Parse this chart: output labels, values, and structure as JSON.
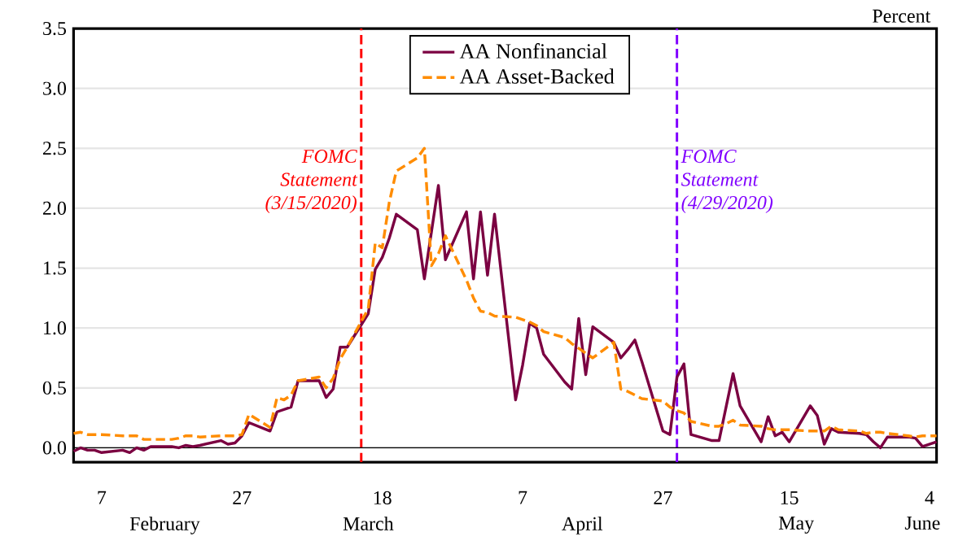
{
  "chart_data": {
    "type": "line",
    "ylabel": "Percent",
    "x": [
      "2020-02-03",
      "2020-02-04",
      "2020-02-05",
      "2020-02-06",
      "2020-02-07",
      "2020-02-10",
      "2020-02-11",
      "2020-02-12",
      "2020-02-13",
      "2020-02-14",
      "2020-02-17",
      "2020-02-18",
      "2020-02-19",
      "2020-02-20",
      "2020-02-21",
      "2020-02-24",
      "2020-02-25",
      "2020-02-26",
      "2020-02-27",
      "2020-02-28",
      "2020-03-02",
      "2020-03-03",
      "2020-03-04",
      "2020-03-05",
      "2020-03-06",
      "2020-03-09",
      "2020-03-10",
      "2020-03-11",
      "2020-03-12",
      "2020-03-13",
      "2020-03-16",
      "2020-03-17",
      "2020-03-18",
      "2020-03-19",
      "2020-03-20",
      "2020-03-23",
      "2020-03-24",
      "2020-03-25",
      "2020-03-26",
      "2020-03-27",
      "2020-03-30",
      "2020-03-31",
      "2020-04-01",
      "2020-04-02",
      "2020-04-03",
      "2020-04-06",
      "2020-04-07",
      "2020-04-08",
      "2020-04-09",
      "2020-04-10",
      "2020-04-13",
      "2020-04-14",
      "2020-04-15",
      "2020-04-16",
      "2020-04-17",
      "2020-04-20",
      "2020-04-21",
      "2020-04-22",
      "2020-04-23",
      "2020-04-24",
      "2020-04-27",
      "2020-04-28",
      "2020-04-29",
      "2020-04-30",
      "2020-05-01",
      "2020-05-04",
      "2020-05-05",
      "2020-05-06",
      "2020-05-07",
      "2020-05-08",
      "2020-05-11",
      "2020-05-12",
      "2020-05-13",
      "2020-05-14",
      "2020-05-15",
      "2020-05-18",
      "2020-05-19",
      "2020-05-20",
      "2020-05-21",
      "2020-05-22",
      "2020-05-25",
      "2020-05-26",
      "2020-05-27",
      "2020-05-28",
      "2020-05-29",
      "2020-06-01",
      "2020-06-02",
      "2020-06-03",
      "2020-06-04",
      "2020-06-05"
    ],
    "series": [
      {
        "name": "AA Nonfinancial",
        "color": "#7b0041",
        "line_style": "solid",
        "values": [
          -0.03,
          0.0,
          -0.02,
          -0.02,
          -0.04,
          -0.02,
          -0.04,
          0.0,
          -0.02,
          0.01,
          0.01,
          0.0,
          0.02,
          0.01,
          0.02,
          0.06,
          0.03,
          0.04,
          0.1,
          0.21,
          0.14,
          0.3,
          0.32,
          0.34,
          0.56,
          0.56,
          0.42,
          0.49,
          0.84,
          0.84,
          1.12,
          1.49,
          1.59,
          1.75,
          1.95,
          1.82,
          1.41,
          1.8,
          2.19,
          1.57,
          1.97,
          1.41,
          1.97,
          1.44,
          1.95,
          0.4,
          0.69,
          1.04,
          1.0,
          0.78,
          0.55,
          0.49,
          1.08,
          0.61,
          1.01,
          0.88,
          0.75,
          0.82,
          0.9,
          0.72,
          0.14,
          0.11,
          0.59,
          0.7,
          0.11,
          0.06,
          0.06,
          0.34,
          0.62,
          0.35,
          0.05,
          0.26,
          0.1,
          0.13,
          0.05,
          0.35,
          0.27,
          0.03,
          0.16,
          0.13,
          0.12,
          0.11,
          0.05,
          0.0,
          0.09,
          0.09,
          0.08,
          0.01,
          0.03,
          0.05
        ]
      },
      {
        "name": "AA Asset-Backed",
        "color": "#ff8c00",
        "line_style": "dashed",
        "values": [
          0.12,
          0.13,
          0.11,
          0.11,
          0.11,
          0.1,
          0.1,
          0.1,
          0.07,
          0.07,
          0.07,
          0.08,
          0.1,
          0.1,
          0.09,
          0.1,
          0.1,
          0.1,
          0.11,
          0.28,
          0.17,
          0.42,
          0.4,
          0.44,
          0.56,
          0.59,
          0.5,
          0.58,
          0.74,
          0.84,
          1.16,
          1.71,
          1.67,
          2.05,
          2.31,
          2.42,
          2.5,
          1.52,
          1.62,
          1.77,
          1.4,
          1.25,
          1.14,
          1.13,
          1.1,
          1.09,
          1.07,
          1.05,
          1.02,
          0.97,
          0.92,
          0.87,
          0.83,
          0.79,
          0.75,
          0.88,
          0.49,
          0.47,
          0.44,
          0.41,
          0.39,
          0.34,
          0.31,
          0.29,
          0.22,
          0.18,
          0.18,
          0.2,
          0.23,
          0.19,
          0.18,
          0.16,
          0.15,
          0.15,
          0.15,
          0.14,
          0.14,
          0.14,
          0.18,
          0.15,
          0.14,
          0.12,
          0.13,
          0.13,
          0.12,
          0.1,
          0.09,
          0.1,
          0.1,
          0.1
        ]
      }
    ],
    "xlim": [
      "2020-02-03",
      "2020-06-05"
    ],
    "xticks": [
      {
        "value": "2020-02-07",
        "label": "7"
      },
      {
        "value": "2020-02-27",
        "label": "27"
      },
      {
        "value": "2020-03-18",
        "label": "18"
      },
      {
        "value": "2020-04-07",
        "label": "7"
      },
      {
        "value": "2020-04-27",
        "label": "27"
      },
      {
        "value": "2020-05-15",
        "label": "15"
      },
      {
        "value": "2020-06-04",
        "label": "4"
      }
    ],
    "ylim": [
      -0.12,
      3.5
    ],
    "yticks": [
      {
        "value": 0,
        "label": "0.0"
      },
      {
        "value": 0.5,
        "label": "0.5"
      },
      {
        "value": 1,
        "label": "1.0"
      },
      {
        "value": 1.5,
        "label": "1.5"
      },
      {
        "value": 2,
        "label": "2.0"
      },
      {
        "value": 2.5,
        "label": "2.5"
      },
      {
        "value": 3,
        "label": "3.0"
      },
      {
        "value": 3.5,
        "label": "3.5"
      }
    ],
    "ref_lines": [
      {
        "axis": "x",
        "value": "2020-03-15",
        "label": "FOMC Statement (3/15/2020)",
        "color": "#ff0000",
        "line_style": "dashed"
      },
      {
        "axis": "x",
        "value": "2020-04-29",
        "label": "FOMC Statement (4/29/2020)",
        "color": "#8000ff",
        "line_style": "dashed"
      },
      {
        "axis": "y",
        "value": 0,
        "color": "#000000",
        "line_style": "solid"
      }
    ],
    "annotations": [
      "February",
      "March",
      "April",
      "May",
      "June"
    ],
    "grid": "y",
    "legend": "top",
    "marker": "none"
  }
}
